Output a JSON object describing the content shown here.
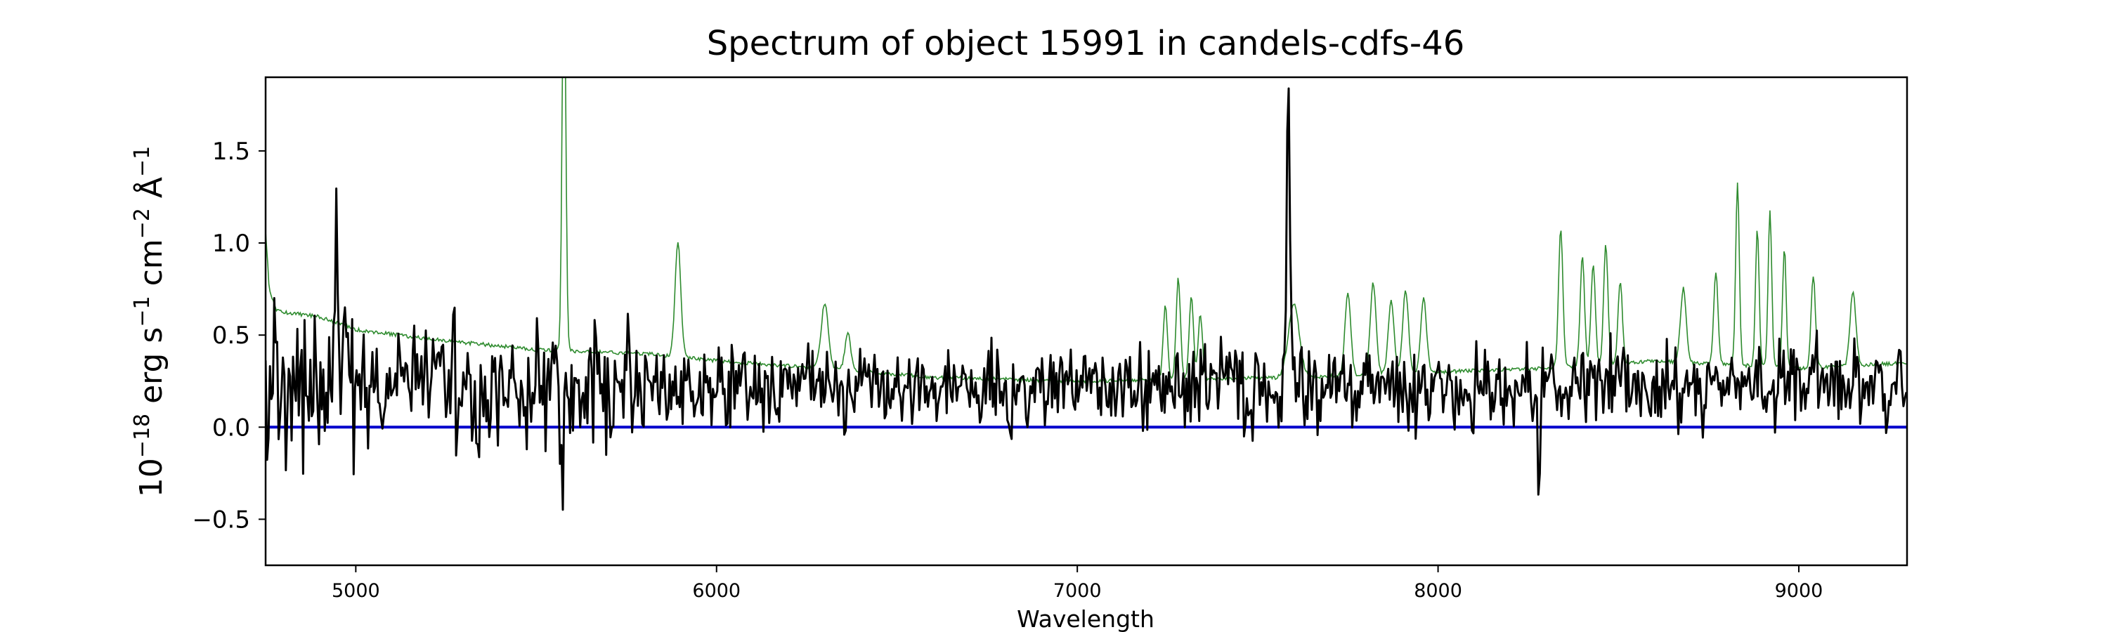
{
  "chart_data": {
    "type": "line",
    "title": "Spectrum of object 15991 in candels-cdfs-46",
    "xlabel": "Wavelength",
    "ylabel": {
      "base": "10",
      "exp1": "−18",
      "unit_erg": " erg s",
      "exp2": "−1",
      "unit_cm": " cm",
      "exp3": "−2",
      "unit_ang": " Å",
      "exp4": "−1"
    },
    "xlim": [
      4750,
      9300
    ],
    "ylim": [
      -0.75,
      1.9
    ],
    "x_ticks": [
      5000,
      6000,
      7000,
      8000,
      9000
    ],
    "x_tick_labels": [
      "5000",
      "6000",
      "7000",
      "8000",
      "9000"
    ],
    "y_ticks": [
      -0.5,
      0.0,
      0.5,
      1.0,
      1.5
    ],
    "y_tick_labels": [
      "−0.5",
      "0.0",
      "0.5",
      "1.0",
      "1.5"
    ],
    "grid": false,
    "series": [
      {
        "role": "error",
        "color": "#2e8b2e",
        "continuum": [
          [
            4750,
            1.07
          ],
          [
            4760,
            0.75
          ],
          [
            4780,
            0.63
          ],
          [
            4900,
            0.6
          ],
          [
            5000,
            0.53
          ],
          [
            5200,
            0.48
          ],
          [
            5500,
            0.42
          ],
          [
            5800,
            0.4
          ],
          [
            6000,
            0.36
          ],
          [
            6300,
            0.32
          ],
          [
            6600,
            0.27
          ],
          [
            7000,
            0.25
          ],
          [
            7300,
            0.26
          ],
          [
            7600,
            0.27
          ],
          [
            8000,
            0.3
          ],
          [
            8300,
            0.32
          ],
          [
            8600,
            0.36
          ],
          [
            9000,
            0.32
          ],
          [
            9300,
            0.35
          ]
        ],
        "features": [
          [
            5577,
            2.2,
            5
          ],
          [
            5893,
            0.62,
            8
          ],
          [
            6300,
            0.35,
            10
          ],
          [
            6364,
            0.2,
            8
          ],
          [
            7244,
            0.4,
            6
          ],
          [
            7280,
            0.55,
            6
          ],
          [
            7316,
            0.45,
            6
          ],
          [
            7341,
            0.35,
            6
          ],
          [
            7600,
            0.4,
            15
          ],
          [
            7750,
            0.45,
            8
          ],
          [
            7820,
            0.5,
            8
          ],
          [
            7870,
            0.4,
            8
          ],
          [
            7910,
            0.45,
            8
          ],
          [
            7960,
            0.4,
            8
          ],
          [
            8340,
            0.75,
            6
          ],
          [
            8400,
            0.6,
            6
          ],
          [
            8430,
            0.55,
            6
          ],
          [
            8465,
            0.65,
            6
          ],
          [
            8505,
            0.45,
            6
          ],
          [
            8680,
            0.4,
            8
          ],
          [
            8770,
            0.5,
            6
          ],
          [
            8830,
            1.0,
            5
          ],
          [
            8885,
            0.75,
            5
          ],
          [
            8920,
            0.85,
            5
          ],
          [
            8960,
            0.65,
            5
          ],
          [
            9040,
            0.5,
            6
          ],
          [
            9150,
            0.4,
            8
          ]
        ]
      },
      {
        "role": "flux",
        "color": "#000000",
        "base_level": 0.22,
        "noise_amplitude": 0.22,
        "features": [
          [
            7585,
            1.55,
            5
          ],
          [
            4945,
            0.5,
            5
          ],
          [
            5570,
            -0.5,
            4
          ],
          [
            8280,
            -0.6,
            4
          ]
        ]
      },
      {
        "role": "zero",
        "color": "#0000cc",
        "value": 0.0
      }
    ]
  }
}
